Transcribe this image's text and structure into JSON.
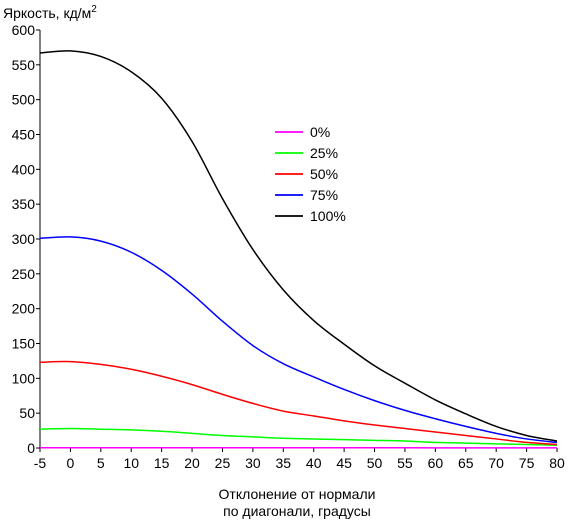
{
  "chart_data": {
    "type": "line",
    "ylabel": "Яркость, кд/м",
    "ylabel_sup": "2",
    "xlabel": [
      "Отклонение от нормали",
      "по диагонали, градусы"
    ],
    "xlim": [
      -5,
      80
    ],
    "ylim": [
      0,
      600
    ],
    "xticks": [
      -5,
      0,
      5,
      10,
      15,
      20,
      25,
      30,
      35,
      40,
      45,
      50,
      55,
      60,
      65,
      70,
      75,
      80
    ],
    "yticks": [
      0,
      50,
      100,
      150,
      200,
      250,
      300,
      350,
      400,
      450,
      500,
      550,
      600
    ],
    "grid": false,
    "legend_placement": "center",
    "x": [
      -5,
      0,
      5,
      10,
      15,
      20,
      25,
      30,
      35,
      40,
      45,
      50,
      55,
      60,
      65,
      70,
      75,
      80
    ],
    "series": [
      {
        "name": "0%",
        "color": "#ff00ff",
        "values": [
          0.3,
          0.3,
          0.3,
          0.3,
          0.3,
          0.3,
          0.3,
          0.3,
          0.3,
          0.3,
          0.3,
          0.3,
          0.3,
          0.2,
          0.2,
          0.2,
          0.2,
          0.2
        ]
      },
      {
        "name": "25%",
        "color": "#00ff00",
        "values": [
          27,
          28,
          27,
          26,
          24,
          21,
          18,
          16,
          14,
          13,
          12,
          11,
          10,
          8,
          7,
          6,
          5,
          4
        ]
      },
      {
        "name": "50%",
        "color": "#ff0000",
        "values": [
          123,
          124,
          120,
          113,
          103,
          91,
          77,
          64,
          53,
          46,
          39,
          33,
          28,
          23,
          18,
          13,
          8,
          5
        ]
      },
      {
        "name": "75%",
        "color": "#0000ff",
        "values": [
          301,
          303,
          297,
          281,
          255,
          221,
          182,
          147,
          121,
          102,
          84,
          68,
          54,
          42,
          31,
          21,
          13,
          8
        ]
      },
      {
        "name": "100%",
        "color": "#000000",
        "values": [
          567,
          570,
          562,
          540,
          502,
          440,
          358,
          285,
          227,
          183,
          149,
          118,
          93,
          69,
          49,
          31,
          18,
          10
        ]
      }
    ]
  }
}
